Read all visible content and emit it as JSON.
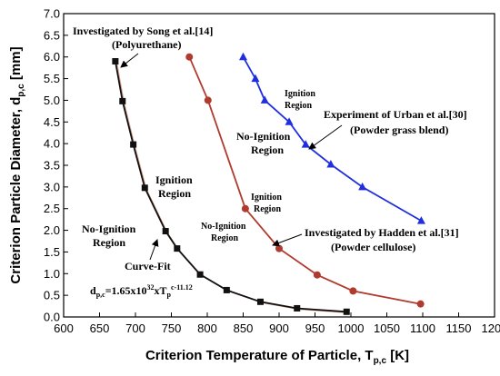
{
  "chart_data": {
    "type": "line",
    "xlabel": {
      "main": "Criterion Temperature of Particle, T",
      "sub": "p,c",
      "unit": " [K]"
    },
    "ylabel": {
      "main": "Criterion Particle Diameter, d",
      "sub": "p,c",
      "unit": " [mm]"
    },
    "xlim": [
      600,
      1200
    ],
    "ylim": [
      0.0,
      7.0
    ],
    "xticks": [
      "600",
      "650",
      "700",
      "750",
      "800",
      "850",
      "900",
      "950",
      "1000",
      "1050",
      "1100",
      "1150",
      "1200"
    ],
    "yticks": [
      "0.0",
      "0.5",
      "1.0",
      "1.5",
      "2.0",
      "2.5",
      "3.0",
      "3.5",
      "4.0",
      "4.5",
      "5.0",
      "5.5",
      "6.0",
      "6.5",
      "7.0"
    ],
    "grid": false,
    "legend": "none",
    "series": [
      {
        "color": "#111111",
        "marker": "square",
        "x": [
          672,
          682,
          697,
          713,
          742,
          758,
          790,
          827,
          874,
          925,
          994
        ],
        "y": [
          5.9,
          4.98,
          3.98,
          2.98,
          1.98,
          1.58,
          0.98,
          0.62,
          0.35,
          0.2,
          0.12
        ]
      },
      {
        "color": "#b03a2e",
        "marker": "circle",
        "x": [
          775,
          801,
          853,
          900,
          953,
          1003,
          1097
        ],
        "y": [
          6.0,
          5.0,
          2.5,
          1.58,
          0.97,
          0.6,
          0.3
        ]
      },
      {
        "color": "#1f2fe0",
        "marker": "triangle",
        "x": [
          850,
          867,
          880,
          914,
          937,
          972,
          1016,
          1098
        ],
        "y": [
          6.0,
          5.5,
          5.0,
          4.5,
          3.98,
          3.52,
          3.0,
          2.22
        ]
      }
    ],
    "annotations": {
      "song_line1": "Investigated by Song et al.[14]",
      "song_line2": "(Polyurethane)",
      "noign_left_1": "No-Ignition",
      "noign_left_2": "Region",
      "ign_left_1": "Ignition",
      "ign_left_2": "Region",
      "curvefit": "Curve-Fit",
      "eq_d": "d",
      "eq_d_sub": "p,c",
      "eq_mid": "=1.65x10",
      "eq_exp1": "32",
      "eq_x": "xT",
      "eq_t_sub": "p",
      "eq_exp2": "c-11.12",
      "noign_mid_1": "No-Ignition",
      "noign_mid_2": "Region",
      "ign_mid_1": "Ignition",
      "ign_mid_2": "Region",
      "hadden_line1": "Investigated by  Hadden et al.[31]",
      "hadden_line2": "(Powder cellulose)",
      "noign_right_1": "No-Ignition",
      "noign_right_2": "Region",
      "ign_right_1": "Ignition",
      "ign_right_2": "Region",
      "urban_line1": "Experiment of Urban et al.[30]",
      "urban_line2": "(Powder grass blend)"
    }
  }
}
